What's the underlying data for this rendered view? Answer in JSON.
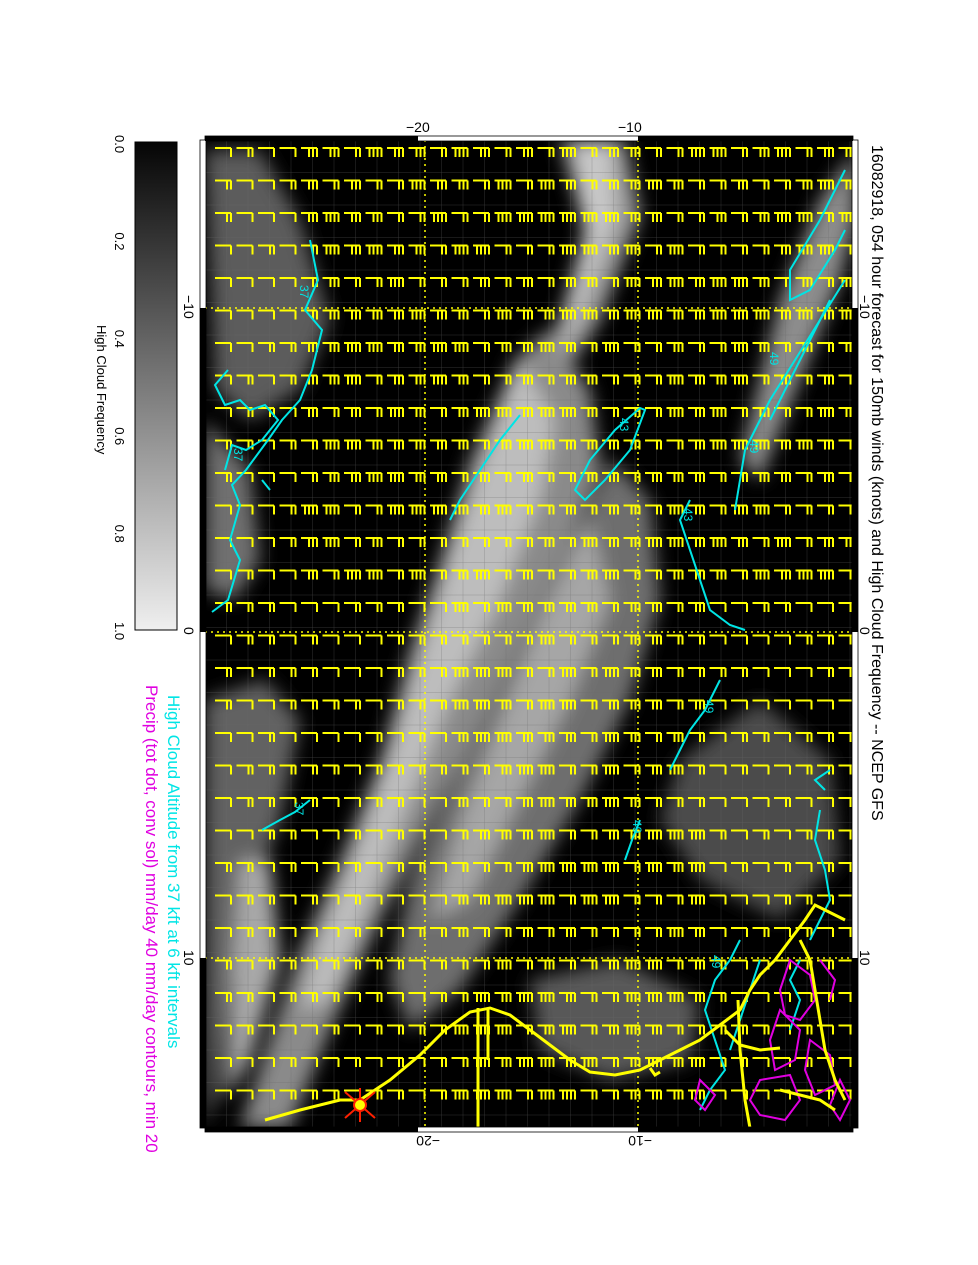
{
  "title": "16082918, 054 hour forecast for 150mb winds (knots) and High Cloud Frequency -- NCEP GFS",
  "legend_line_1": "High Cloud Altitude from 37 kft at 6 kft intervals",
  "legend_line_2": "Precip (tot dot, conv sol) mm/day 40 mm/day contours, min 20",
  "colorbar": {
    "label": "High Cloud Frequency",
    "ticks": [
      "0.0",
      "0.2",
      "0.4",
      "0.6",
      "0.8",
      "1.0"
    ]
  },
  "axes": {
    "top_ticks": [
      "−20",
      "−10"
    ],
    "bottom_ticks": [
      "−20",
      "−10"
    ],
    "left_ticks": [
      "−10",
      "0",
      "10"
    ],
    "right_ticks": [
      "−10",
      "0",
      "10"
    ]
  },
  "contour_labels": {
    "altitude_37": "37",
    "altitude_43": "43",
    "altitude_49": "49"
  },
  "colors": {
    "background": "#000000",
    "wind_barbs": "#ffff00",
    "cloud_altitude_contours": "#00e5e5",
    "precip_contours": "#e000e0",
    "coastline": "#ffff00",
    "marker": "#ff2000"
  },
  "map_type": "rotated meteorological forecast map with wind barbs, grey cloud frequency shading and contour lines"
}
